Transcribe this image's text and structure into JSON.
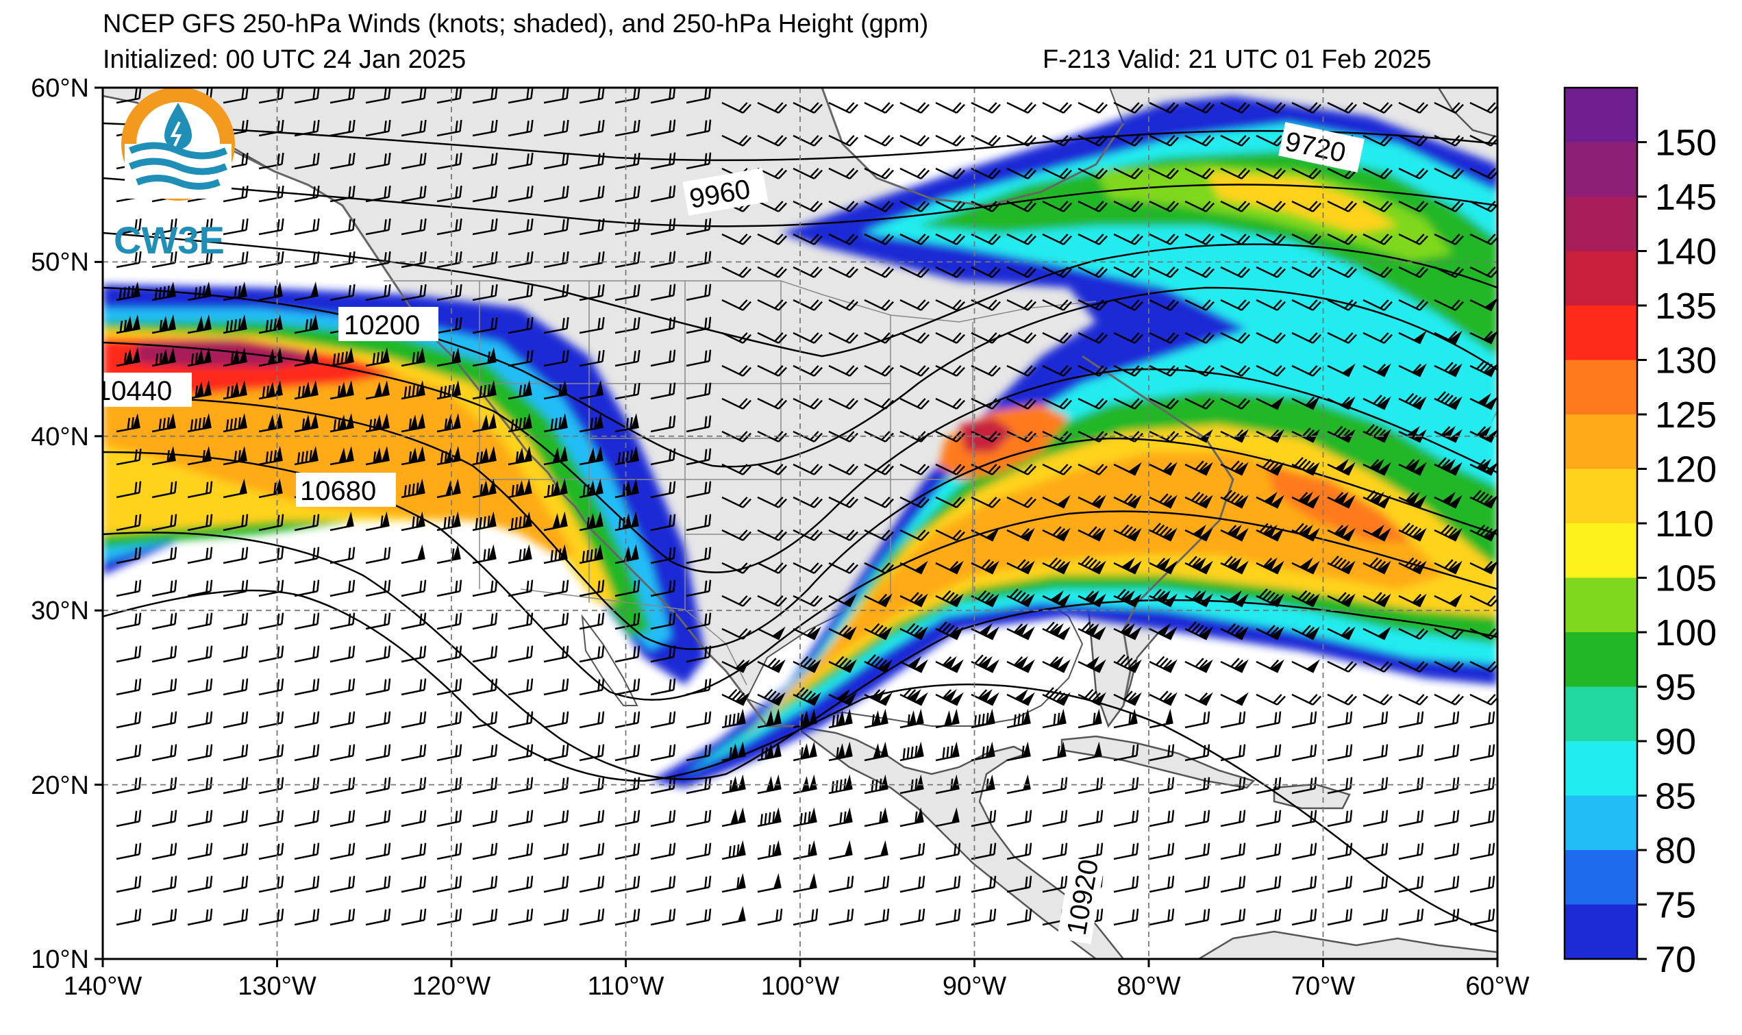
{
  "header": {
    "title": "NCEP GFS 250-hPa Winds (knots; shaded), and 250-hPa Height (gpm)",
    "initialized": "Initialized: 00 UTC 24 Jan 2025",
    "valid": "F-213  Valid: 21 UTC 01 Feb 2025"
  },
  "logo": {
    "text": "CW3E",
    "colors": {
      "ring": "#f39a1e",
      "waves": "#1f8fb8",
      "drop": "#1f8fb8"
    }
  },
  "map": {
    "lat_labels": [
      "60°N",
      "50°N",
      "40°N",
      "30°N",
      "20°N",
      "10°N"
    ],
    "lon_labels": [
      "140°W",
      "130°W",
      "120°W",
      "110°W",
      "100°W",
      "90°W",
      "80°W",
      "70°W",
      "60°W"
    ],
    "lat_range": [
      10,
      60
    ],
    "lon_range": [
      -140,
      -60
    ],
    "land_color": "#e6e6e6",
    "ocean_color": "#ffffff",
    "contour_labels": [
      "9960",
      "9720",
      "10200",
      "10440",
      "10680",
      "10920"
    ]
  },
  "colorbar": {
    "labels": [
      "150",
      "145",
      "140",
      "135",
      "130",
      "125",
      "120",
      "110",
      "105",
      "100",
      "95",
      "90",
      "85",
      "80",
      "75",
      "70"
    ],
    "colors": [
      "#6f1f8f",
      "#8e1f76",
      "#a81e5a",
      "#c8203c",
      "#ff2a1a",
      "#ff7a1c",
      "#ffaa18",
      "#ffd21e",
      "#fff21c",
      "#7fd81e",
      "#21b726",
      "#20d8a0",
      "#21ecef",
      "#20bdf6",
      "#1d6bef",
      "#1c2bd6"
    ]
  }
}
